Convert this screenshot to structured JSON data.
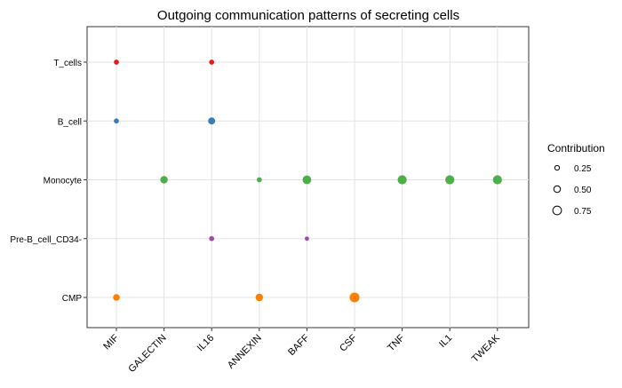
{
  "chart_data": {
    "type": "scatter",
    "title": "Outgoing communication patterns of secreting cells",
    "xlabel": "",
    "ylabel": "",
    "x_categories": [
      "MIF",
      "GALECTIN",
      "IL16",
      "ANNEXIN",
      "BAFF",
      "CSF",
      "TNF",
      "IL1",
      "TWEAK"
    ],
    "y_categories": [
      "T_cells",
      "B_cell",
      "Monocyte",
      "Pre-B_cell_CD34-",
      "CMP"
    ],
    "grid": true,
    "legend": {
      "title": "Contribution",
      "placement": "right",
      "entries": [
        {
          "label": "0.25",
          "value": 0.25
        },
        {
          "label": "0.50",
          "value": 0.5
        },
        {
          "label": "0.75",
          "value": 0.75
        }
      ]
    },
    "series": [
      {
        "cell": "T_cells",
        "color": "#e41a1c",
        "points": [
          {
            "pathway": "MIF",
            "contribution": 0.3
          },
          {
            "pathway": "IL16",
            "contribution": 0.3
          }
        ]
      },
      {
        "cell": "B_cell",
        "color": "#377eb8",
        "points": [
          {
            "pathway": "MIF",
            "contribution": 0.3
          },
          {
            "pathway": "IL16",
            "contribution": 0.55
          }
        ]
      },
      {
        "cell": "Monocyte",
        "color": "#4daf4a",
        "points": [
          {
            "pathway": "GALECTIN",
            "contribution": 0.6
          },
          {
            "pathway": "ANNEXIN",
            "contribution": 0.3
          },
          {
            "pathway": "BAFF",
            "contribution": 0.75
          },
          {
            "pathway": "TNF",
            "contribution": 0.8
          },
          {
            "pathway": "IL1",
            "contribution": 0.8
          },
          {
            "pathway": "TWEAK",
            "contribution": 0.8
          }
        ]
      },
      {
        "cell": "Pre-B_cell_CD34-",
        "color": "#984ea3",
        "points": [
          {
            "pathway": "IL16",
            "contribution": 0.3
          },
          {
            "pathway": "BAFF",
            "contribution": 0.2
          }
        ]
      },
      {
        "cell": "CMP",
        "color": "#ff7f00",
        "points": [
          {
            "pathway": "MIF",
            "contribution": 0.5
          },
          {
            "pathway": "ANNEXIN",
            "contribution": 0.6
          },
          {
            "pathway": "CSF",
            "contribution": 0.9
          }
        ]
      }
    ]
  }
}
